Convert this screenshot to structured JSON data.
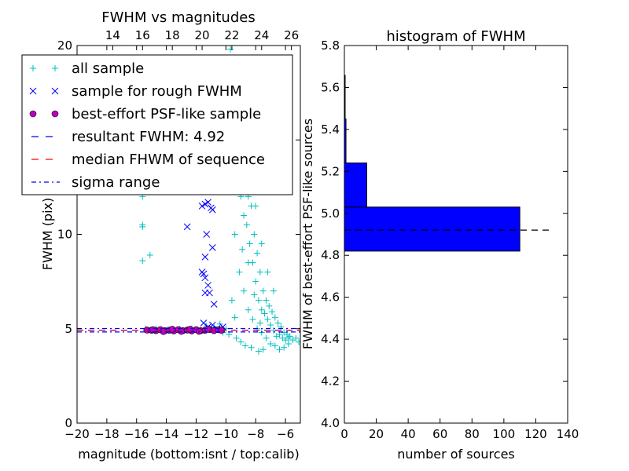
{
  "chart_data": [
    {
      "type": "scatter",
      "title": "FWHM vs magnitudes",
      "xlabel": "magnitude (bottom:isnt / top:calib)",
      "ylabel": "FWHM (pix)",
      "xlim": [
        -20,
        -5
      ],
      "ylim": [
        0,
        20
      ],
      "x_ticks": [
        -20,
        -18,
        -16,
        -14,
        -12,
        -10,
        -8,
        -6
      ],
      "x_tick_labels": [
        "−20",
        "−18",
        "−16",
        "−14",
        "−12",
        "−10",
        "−8",
        "−6"
      ],
      "y_ticks": [
        0,
        5,
        10,
        15,
        20
      ],
      "y_tick_labels": [
        "0",
        "5",
        "10",
        "15",
        "20"
      ],
      "top_axis": {
        "offset": 31.6,
        "ticks": [
          14,
          16,
          18,
          20,
          22,
          24,
          26
        ],
        "labels": [
          "14",
          "16",
          "18",
          "20",
          "22",
          "24",
          "26"
        ]
      },
      "legend_placement": "upper-left",
      "legend": [
        {
          "label": "all sample",
          "marker": "plus",
          "color": "#00bfbf"
        },
        {
          "label": "sample for rough FWHM",
          "marker": "x",
          "color": "#0000ff"
        },
        {
          "label": "best-effort PSF-like sample",
          "marker": "circle",
          "color": "#bf00bf"
        },
        {
          "label": "resultant FWHM: 4.92",
          "marker": "dashed-line",
          "color": "#0000ff"
        },
        {
          "label": "median FHWM of sequence",
          "marker": "dashed-line",
          "color": "#ff0000"
        },
        {
          "label": "sigma range",
          "marker": "dashdot-line",
          "color": "#0000ff"
        }
      ],
      "series": [
        {
          "name": "all sample",
          "marker": "plus",
          "color": "#00bfbf",
          "points": [
            [
              -15.6,
              12.0
            ],
            [
              -15.6,
              10.5
            ],
            [
              -15.6,
              10.4
            ],
            [
              -15.6,
              8.6
            ],
            [
              -15.1,
              8.9
            ],
            [
              -15.4,
              5.0
            ],
            [
              -15.0,
              4.95
            ],
            [
              -14.7,
              5.0
            ],
            [
              -14.3,
              4.92
            ],
            [
              -13.9,
              4.95
            ],
            [
              -13.5,
              4.9
            ],
            [
              -13.1,
              4.98
            ],
            [
              -12.7,
              4.93
            ],
            [
              -12.3,
              5.0
            ],
            [
              -11.9,
              4.95
            ],
            [
              -11.5,
              4.9
            ],
            [
              -11.1,
              5.02
            ],
            [
              -10.7,
              4.97
            ],
            [
              -10.3,
              5.05
            ],
            [
              -10.0,
              5.0
            ],
            [
              -10.4,
              5.25
            ],
            [
              -10.8,
              5.1
            ],
            [
              -11.3,
              5.15
            ],
            [
              -10.5,
              14.5
            ],
            [
              -10.1,
              18.0
            ],
            [
              -9.9,
              15.5
            ],
            [
              -9.7,
              19.8
            ],
            [
              -9.6,
              13.0
            ],
            [
              -9.5,
              16.0
            ],
            [
              -9.3,
              15.0
            ],
            [
              -9.1,
              12.5
            ],
            [
              -9.0,
              12.0
            ],
            [
              -8.9,
              14.0
            ],
            [
              -8.8,
              11.0
            ],
            [
              -8.7,
              13.0
            ],
            [
              -8.6,
              10.5
            ],
            [
              -8.5,
              12.0
            ],
            [
              -8.4,
              9.5
            ],
            [
              -8.3,
              11.5
            ],
            [
              -8.2,
              8.5
            ],
            [
              -8.1,
              10.0
            ],
            [
              -8.0,
              7.5
            ],
            [
              -7.9,
              9.0
            ],
            [
              -7.8,
              6.5
            ],
            [
              -7.7,
              8.0
            ],
            [
              -7.6,
              6.0
            ],
            [
              -7.5,
              7.0
            ],
            [
              -7.4,
              5.8
            ],
            [
              -7.3,
              6.5
            ],
            [
              -7.2,
              5.5
            ],
            [
              -7.1,
              6.2
            ],
            [
              -7.0,
              5.2
            ],
            [
              -6.9,
              5.9
            ],
            [
              -6.8,
              4.9
            ],
            [
              -6.7,
              5.6
            ],
            [
              -6.6,
              4.6
            ],
            [
              -6.5,
              5.3
            ],
            [
              -6.4,
              4.7
            ],
            [
              -6.3,
              5.1
            ],
            [
              -6.2,
              4.5
            ],
            [
              -6.1,
              4.8
            ],
            [
              -6.0,
              4.4
            ],
            [
              -5.9,
              4.7
            ],
            [
              -5.8,
              4.5
            ],
            [
              -5.7,
              4.6
            ],
            [
              -5.5,
              4.4
            ],
            [
              -5.3,
              4.5
            ],
            [
              -5.1,
              4.3
            ],
            [
              -8.6,
              15.0
            ],
            [
              -8.9,
              16.5
            ],
            [
              -9.2,
              17.5
            ],
            [
              -8.4,
              13.5
            ],
            [
              -8.0,
              11.5
            ],
            [
              -7.6,
              9.5
            ],
            [
              -7.2,
              8.0
            ],
            [
              -6.8,
              7.0
            ],
            [
              -9.4,
              10.0
            ],
            [
              -9.1,
              8.0
            ],
            [
              -8.8,
              7.0
            ],
            [
              -8.5,
              6.0
            ],
            [
              -8.2,
              5.5
            ],
            [
              -7.9,
              5.0
            ],
            [
              -7.6,
              4.8
            ],
            [
              -7.3,
              4.5
            ],
            [
              -7.0,
              4.2
            ],
            [
              -6.7,
              4.1
            ],
            [
              -6.4,
              3.9
            ],
            [
              -6.1,
              4.0
            ],
            [
              -5.8,
              4.2
            ],
            [
              -9.6,
              6.5
            ],
            [
              -9.4,
              5.6
            ],
            [
              -10.2,
              4.8
            ],
            [
              -9.8,
              4.7
            ],
            [
              -9.3,
              4.5
            ],
            [
              -9.0,
              4.3
            ],
            [
              -8.7,
              4.1
            ],
            [
              -8.3,
              4.0
            ],
            [
              -7.8,
              3.8
            ],
            [
              -7.5,
              3.9
            ],
            [
              -8.5,
              8.5
            ],
            [
              -8.9,
              9.2
            ],
            [
              -8.1,
              6.8
            ],
            [
              -7.7,
              5.3
            ]
          ]
        },
        {
          "name": "sample for rough FWHM",
          "marker": "x",
          "color": "#0000ff",
          "points": [
            [
              -11.6,
              11.5
            ],
            [
              -11.4,
              11.6
            ],
            [
              -11.2,
              11.7
            ],
            [
              -11.0,
              11.4
            ],
            [
              -10.9,
              11.3
            ],
            [
              -11.4,
              8.8
            ],
            [
              -11.3,
              10.0
            ],
            [
              -10.9,
              9.3
            ],
            [
              -11.5,
              7.9
            ],
            [
              -11.2,
              7.3
            ],
            [
              -11.6,
              8.0
            ],
            [
              -12.6,
              10.4
            ],
            [
              -11.4,
              6.9
            ],
            [
              -11.1,
              6.9
            ],
            [
              -10.8,
              6.3
            ],
            [
              -11.5,
              5.3
            ],
            [
              -11.2,
              5.1
            ],
            [
              -10.9,
              5.2
            ],
            [
              -10.6,
              5.0
            ],
            [
              -10.2,
              5.1
            ],
            [
              -11.4,
              7.7
            ]
          ]
        },
        {
          "name": "best-effort PSF-like sample",
          "marker": "circle",
          "color": "#bf00bf",
          "points": [
            [
              -15.3,
              4.93
            ],
            [
              -15.0,
              4.92
            ],
            [
              -14.7,
              4.9
            ],
            [
              -14.4,
              4.95
            ],
            [
              -14.1,
              4.9
            ],
            [
              -13.8,
              4.92
            ],
            [
              -13.5,
              4.88
            ],
            [
              -13.2,
              4.95
            ],
            [
              -12.9,
              4.9
            ],
            [
              -12.6,
              4.93
            ],
            [
              -12.3,
              4.88
            ],
            [
              -12.0,
              4.95
            ],
            [
              -11.7,
              4.9
            ],
            [
              -11.4,
              4.92
            ],
            [
              -11.1,
              4.96
            ],
            [
              -10.8,
              4.9
            ],
            [
              -10.5,
              4.95
            ],
            [
              -10.3,
              4.92
            ],
            [
              -14.9,
              4.95
            ],
            [
              -14.2,
              4.85
            ],
            [
              -13.6,
              4.97
            ],
            [
              -13.0,
              4.86
            ],
            [
              -12.4,
              4.97
            ],
            [
              -11.8,
              4.86
            ],
            [
              -11.2,
              4.98
            ]
          ]
        }
      ],
      "reference_lines": [
        {
          "name": "resultant FWHM: 4.92",
          "y": 4.92,
          "color": "#0000ff",
          "style": "dashed"
        },
        {
          "name": "median FHWM of sequence",
          "y": 4.92,
          "color": "#ff0000",
          "style": "dashed"
        },
        {
          "name": "sigma range",
          "y": 4.83,
          "color": "#0000ff",
          "style": "dashdot"
        },
        {
          "name": "sigma range",
          "y": 5.01,
          "color": "#0000ff",
          "style": "dashdot"
        }
      ],
      "grid": false
    },
    {
      "type": "bar",
      "orientation": "horizontal",
      "title": "histogram of FWHM",
      "xlabel": "number of sources",
      "ylabel": "FWHM of best-effort PSF-like sources",
      "xlim": [
        0,
        140
      ],
      "ylim": [
        4.0,
        5.8
      ],
      "x_ticks": [
        0,
        20,
        40,
        60,
        80,
        100,
        120,
        140
      ],
      "x_tick_labels": [
        "0",
        "20",
        "40",
        "60",
        "80",
        "100",
        "120",
        "140"
      ],
      "y_ticks": [
        4.0,
        4.2,
        4.4,
        4.6,
        4.8,
        5.0,
        5.2,
        5.4,
        5.6,
        5.8
      ],
      "y_tick_labels": [
        "4.0",
        "4.2",
        "4.4",
        "4.6",
        "4.8",
        "5.0",
        "5.2",
        "5.4",
        "5.6",
        "5.8"
      ],
      "bar_color": "#0000ff",
      "bins": [
        {
          "lo": 4.82,
          "hi": 5.03,
          "count": 110
        },
        {
          "lo": 5.03,
          "hi": 5.24,
          "count": 14
        },
        {
          "lo": 5.24,
          "hi": 5.45,
          "count": 1
        },
        {
          "lo": 5.45,
          "hi": 5.66,
          "count": 0
        }
      ],
      "reference_line": {
        "y": 4.92,
        "x_range": [
          0,
          130
        ],
        "color": "#000000",
        "style": "dashed"
      },
      "grid": false
    }
  ]
}
